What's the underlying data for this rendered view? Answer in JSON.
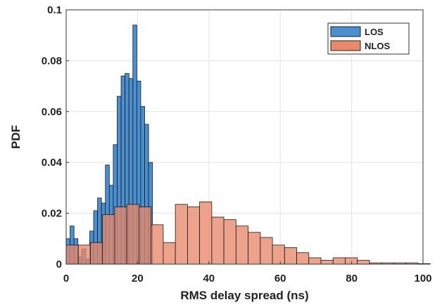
{
  "chart_data": {
    "type": "bar",
    "subtype": "histogram",
    "title": "",
    "xlabel": "RMS delay spread (ns)",
    "ylabel": "PDF",
    "xlim": [
      0,
      100
    ],
    "ylim": [
      0,
      0.1
    ],
    "xticks": [
      "0",
      "20",
      "40",
      "60",
      "80",
      "100"
    ],
    "yticks": [
      "0",
      "0.02",
      "0.04",
      "0.06",
      "0.08",
      "0.1"
    ],
    "grid": true,
    "legend_position": "top-right",
    "series": [
      {
        "name": "LOS",
        "color": "#4a8fd0",
        "bin_width": 1.1,
        "bin_start": 0,
        "values": [
          0.01,
          0.015,
          0.01,
          0.003,
          0.006,
          0.002,
          0.013,
          0.021,
          0.026,
          0.024,
          0.039,
          0.031,
          0.047,
          0.066,
          0.074,
          0.075,
          0.073,
          0.094,
          0.072,
          0.062,
          0.055,
          0.04
        ]
      },
      {
        "name": "NLOS",
        "color": "#e8896a",
        "bin_width": 3.4,
        "bin_start": 0,
        "values": [
          0.0075,
          0.0075,
          0.0085,
          0.0195,
          0.0225,
          0.0235,
          0.0225,
          0.0155,
          0.0085,
          0.0235,
          0.0225,
          0.0245,
          0.0185,
          0.0175,
          0.015,
          0.0125,
          0.0105,
          0.0075,
          0.0065,
          0.0045,
          0.0025,
          0.0015,
          0.0025,
          0.0025,
          0.0015,
          0.0005,
          0.0005,
          0.0005,
          0.0005,
          0.0002
        ]
      }
    ]
  }
}
